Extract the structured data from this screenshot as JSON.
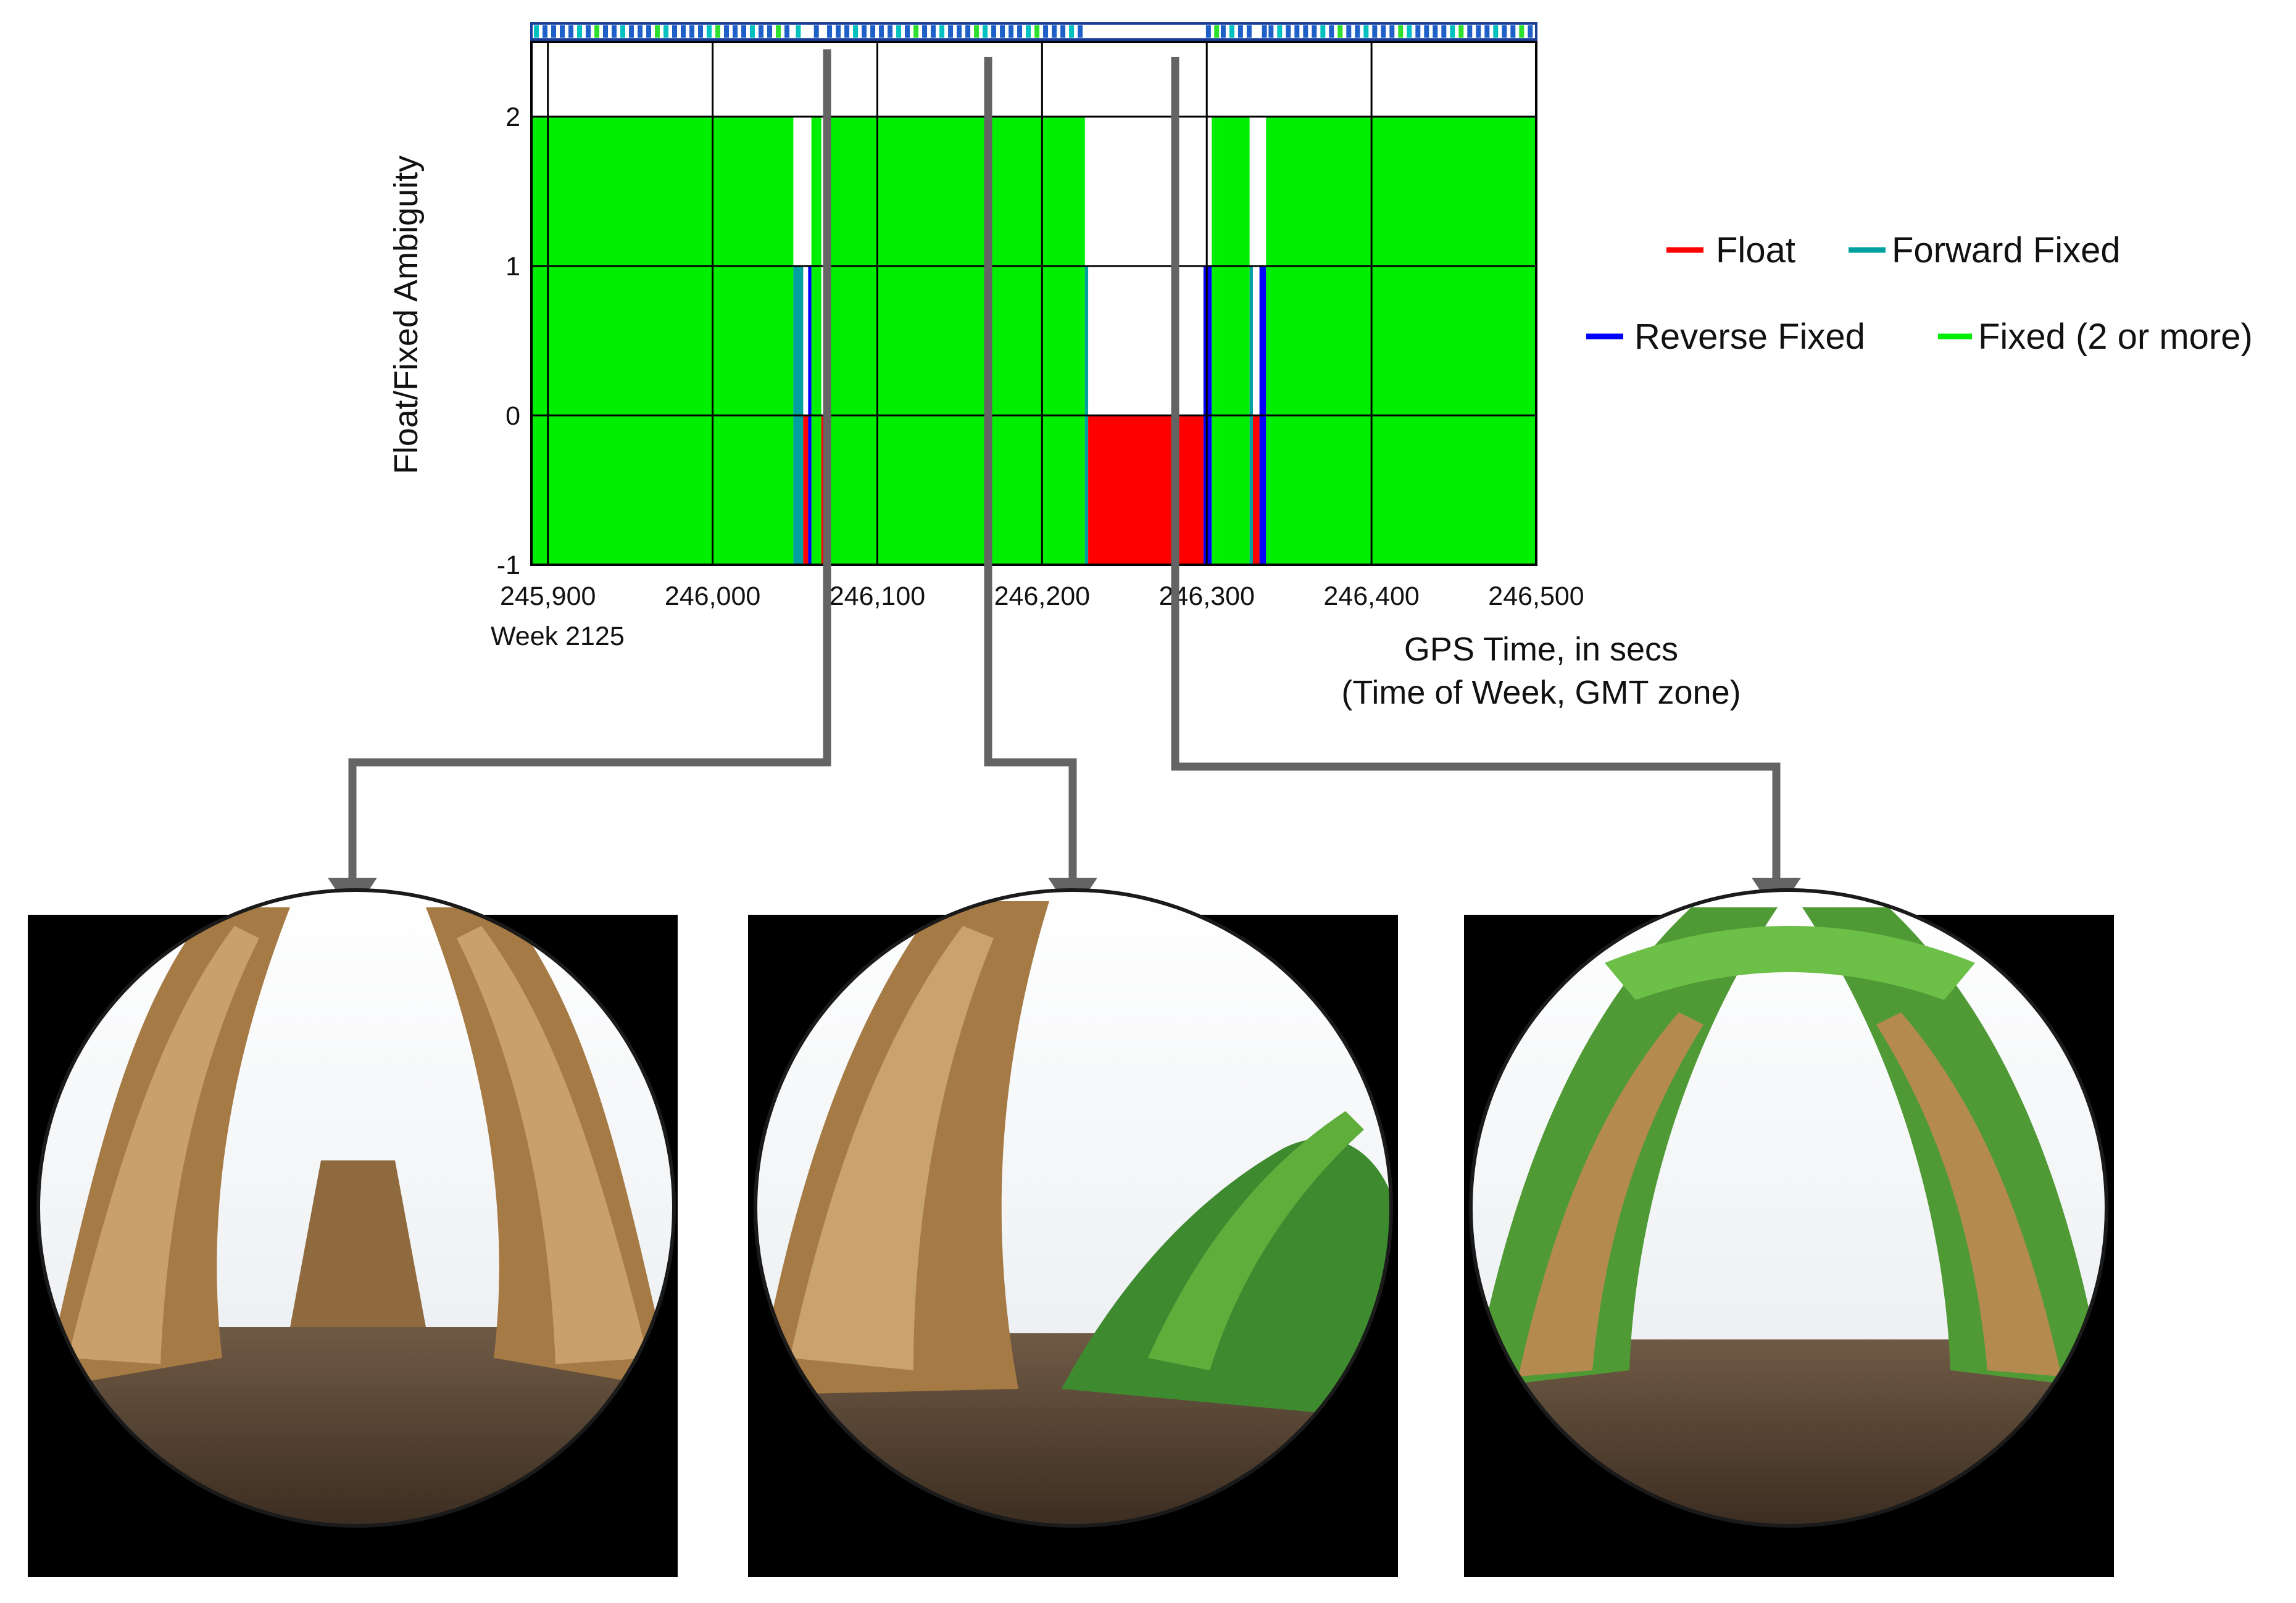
{
  "chart_data": {
    "type": "area",
    "title": "",
    "ylabel": "Float/Fixed Ambiguity",
    "xlabel_lines": [
      "GPS Time, in secs",
      "(Time of Week, GMT zone)"
    ],
    "x_sublabel": "Week 2125",
    "xlim": [
      245890,
      246500
    ],
    "ylim": [
      -1,
      2.5
    ],
    "yticks": [
      2,
      1,
      0,
      -1
    ],
    "ytick_labels": [
      "2",
      "1",
      "0",
      "-1"
    ],
    "xticks": [
      245900,
      246000,
      246100,
      246200,
      246300,
      246400,
      246500
    ],
    "xtick_labels": [
      "245,900",
      "246,000",
      "246,100",
      "246,200",
      "246,300",
      "246,400",
      "246,500"
    ],
    "grid": true,
    "legend_position": "right",
    "series": [
      {
        "name": "Float",
        "color": "#ff0000"
      },
      {
        "name": "Forward Fixed",
        "color": "#00a0a0"
      },
      {
        "name": "Reverse Fixed",
        "color": "#0000ff"
      },
      {
        "name": "Fixed (2 or more)",
        "color": "#00ee00"
      }
    ],
    "segments": [
      {
        "x0": 245890,
        "x1": 246049,
        "value": 2,
        "status": "Fixed (2 or more)"
      },
      {
        "x0": 246049,
        "x1": 246055,
        "value": 1,
        "status": "Forward Fixed"
      },
      {
        "x0": 246055,
        "x1": 246058,
        "value": 0,
        "status": "Float"
      },
      {
        "x0": 246058,
        "x1": 246060,
        "value": 1,
        "status": "Reverse Fixed"
      },
      {
        "x0": 246060,
        "x1": 246066,
        "value": 2,
        "status": "Fixed (2 or more)"
      },
      {
        "x0": 246066,
        "x1": 246068,
        "value": 0,
        "status": "Float"
      },
      {
        "x0": 246068,
        "x1": 246226,
        "value": 2,
        "status": "Fixed (2 or more)"
      },
      {
        "x0": 246226,
        "x1": 246228,
        "value": 1,
        "status": "Forward Fixed"
      },
      {
        "x0": 246228,
        "x1": 246298,
        "value": 0,
        "status": "Float"
      },
      {
        "x0": 246298,
        "x1": 246303,
        "value": 1,
        "status": "Reverse Fixed"
      },
      {
        "x0": 246303,
        "x1": 246307,
        "value": 2,
        "status": "Fixed (2 or more)"
      },
      {
        "x0": 246307,
        "x1": 246326,
        "value": 2,
        "status": "Fixed (2 or more)"
      },
      {
        "x0": 246326,
        "x1": 246328,
        "value": 1,
        "status": "Forward Fixed"
      },
      {
        "x0": 246328,
        "x1": 246332,
        "value": 0,
        "status": "Float"
      },
      {
        "x0": 246332,
        "x1": 246336,
        "value": 1,
        "status": "Reverse Fixed"
      },
      {
        "x0": 246336,
        "x1": 246500,
        "value": 2,
        "status": "Fixed (2 or more)"
      }
    ],
    "markers": [
      {
        "x": 246065,
        "photo": 0
      },
      {
        "x": 246163,
        "photo": 1
      },
      {
        "x": 246276,
        "photo": 2
      }
    ]
  },
  "photos": [
    {
      "id": "photo-left"
    },
    {
      "id": "photo-middle"
    },
    {
      "id": "photo-right"
    }
  ]
}
